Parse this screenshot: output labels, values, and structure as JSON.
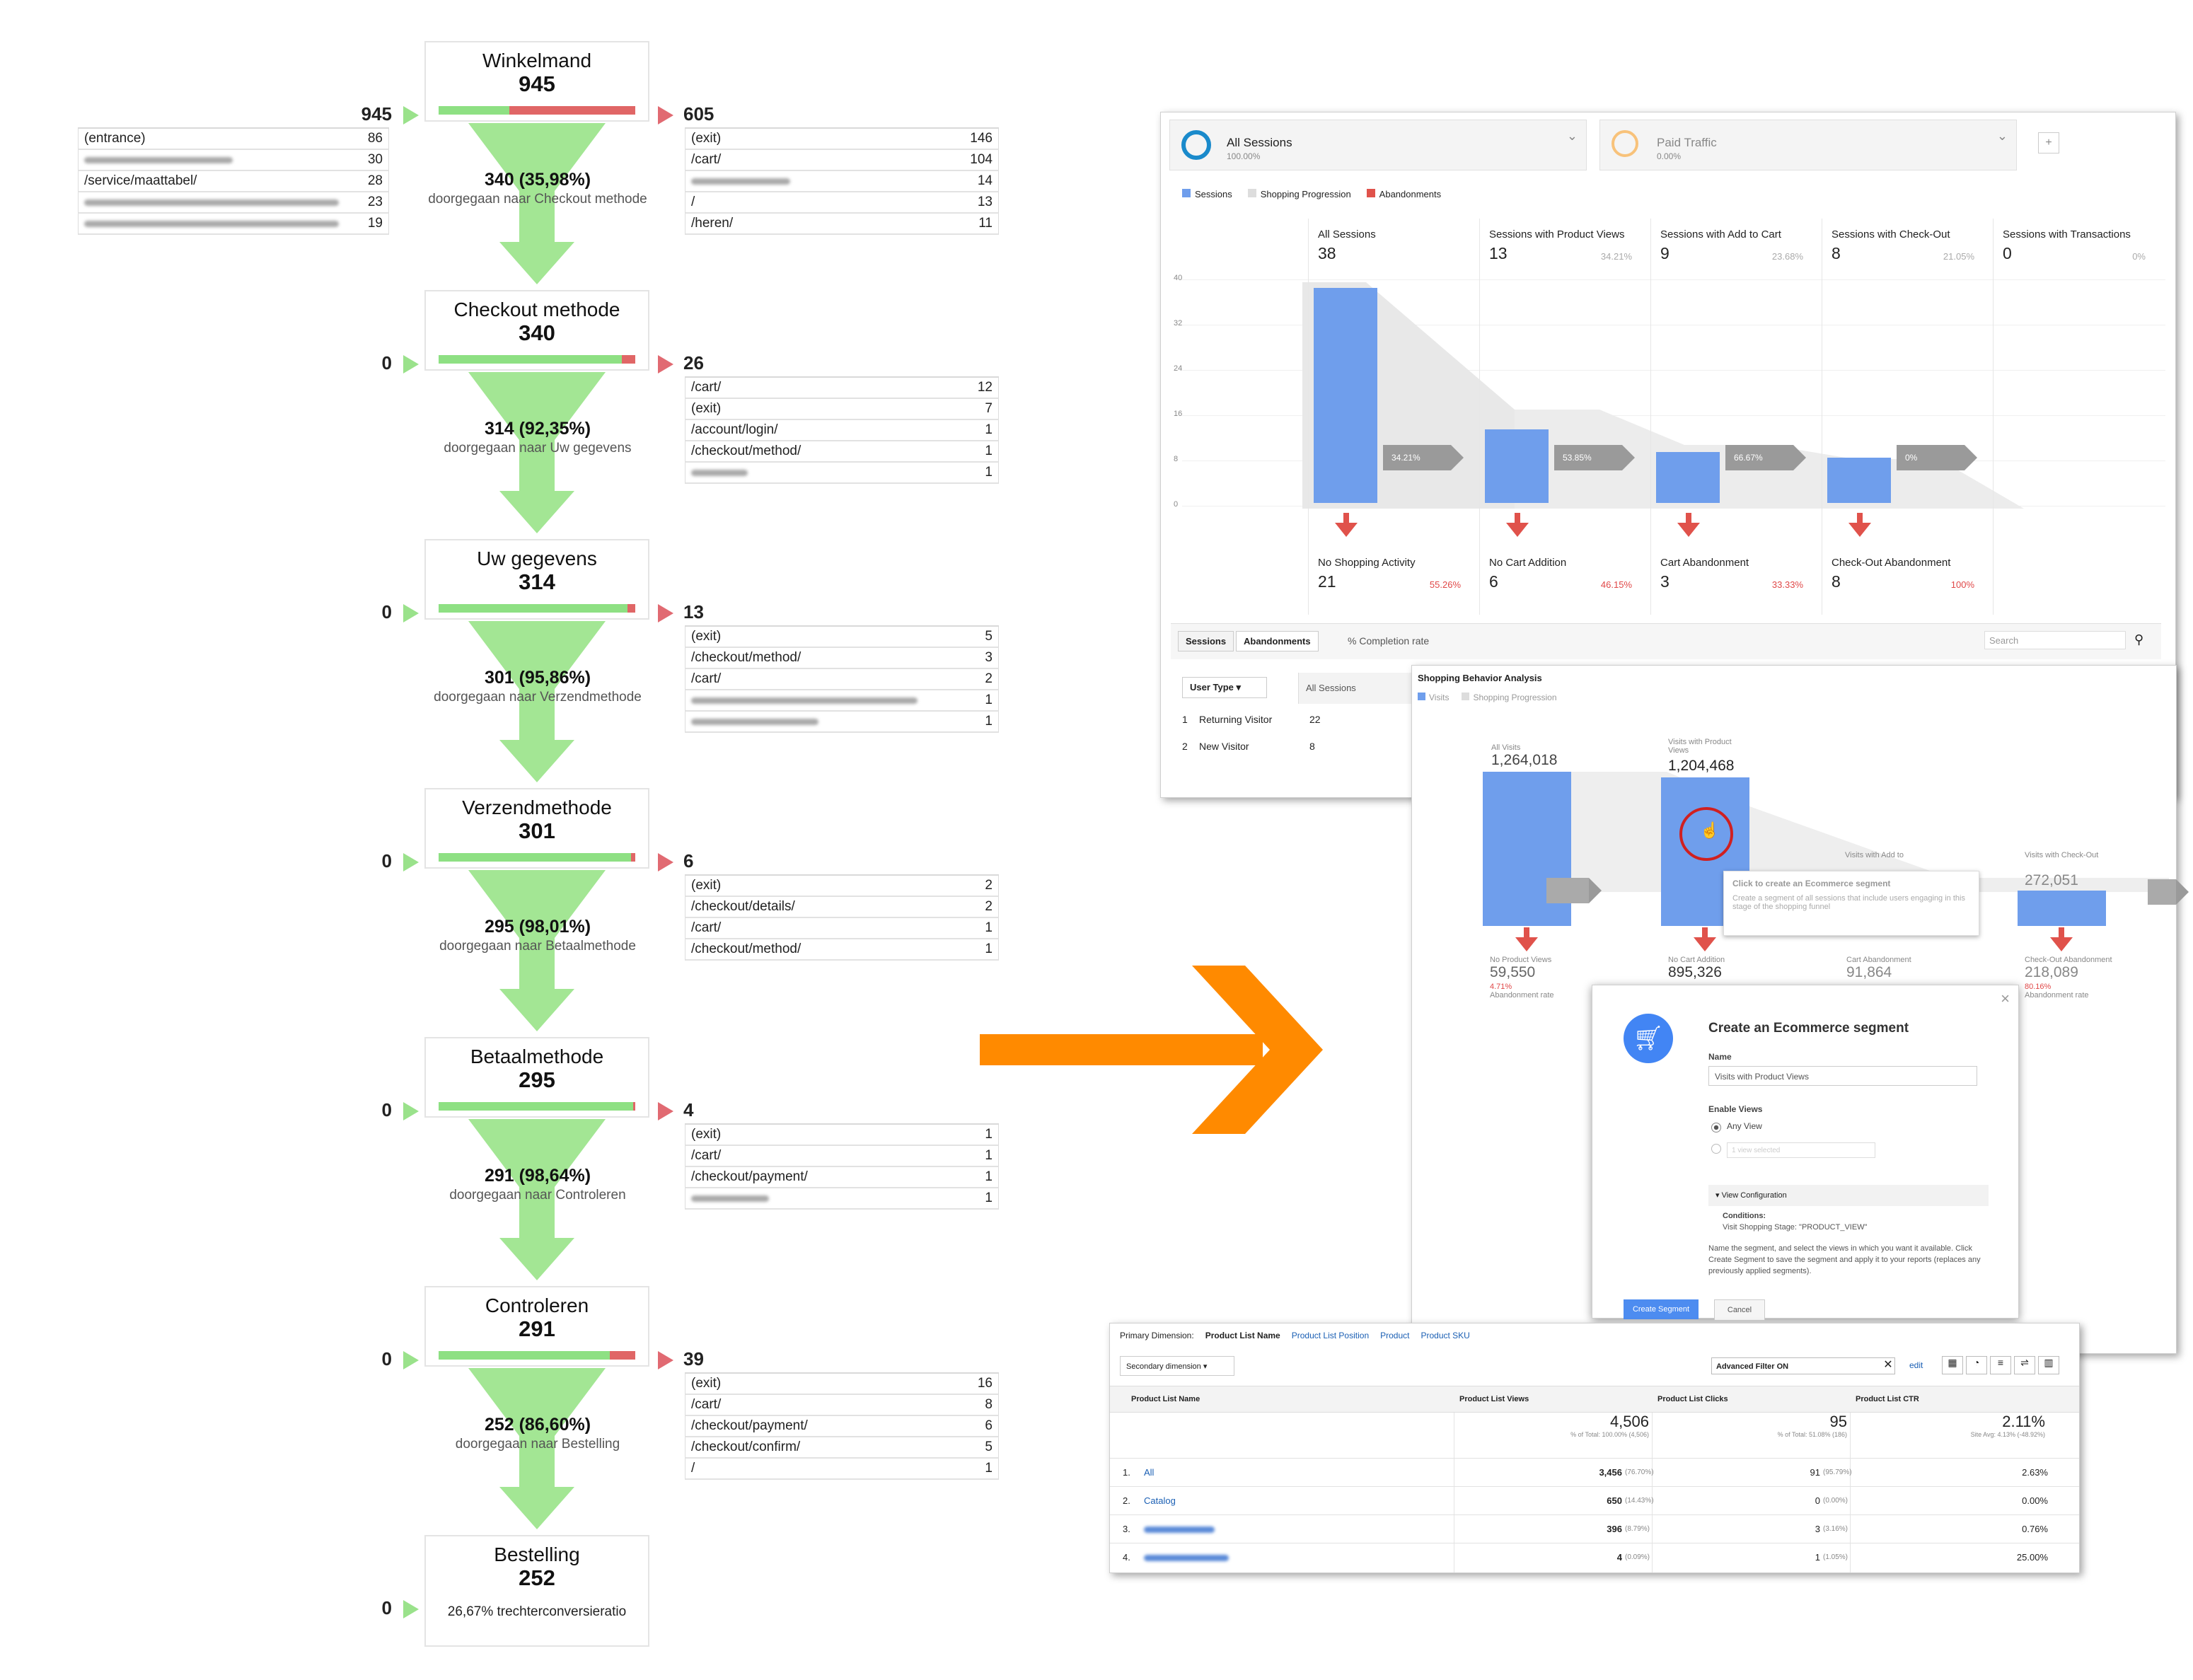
{
  "funnel": {
    "steps": [
      {
        "name": "Winkelmand",
        "count": "945",
        "in": "945",
        "out": "605",
        "green": 0.36,
        "in_rows": [
          {
            "label": "(entrance)",
            "value": "86"
          },
          {
            "label": "",
            "value": "30",
            "blur": 210
          },
          {
            "label": "/service/maattabel/",
            "value": "28"
          },
          {
            "label": "",
            "value": "23",
            "blur": 360
          },
          {
            "label": "",
            "value": "19",
            "blur": 360
          }
        ],
        "out_rows": [
          {
            "label": "(exit)",
            "value": "146"
          },
          {
            "label": "/cart/",
            "value": "104"
          },
          {
            "label": "",
            "value": "14",
            "blur": 140
          },
          {
            "label": "/",
            "value": "13"
          },
          {
            "label": "/heren/",
            "value": "11"
          }
        ],
        "conv_pct": "340 (35,98%)",
        "conv_text": "doorgegaan naar Checkout methode"
      },
      {
        "name": "Checkout methode",
        "count": "340",
        "in": "0",
        "out": "26",
        "green": 0.93,
        "out_rows": [
          {
            "label": "/cart/",
            "value": "12"
          },
          {
            "label": "(exit)",
            "value": "7"
          },
          {
            "label": "/account/login/",
            "value": "1"
          },
          {
            "label": "/checkout/method/",
            "value": "1"
          },
          {
            "label": "",
            "value": "1",
            "blur": 80
          }
        ],
        "conv_pct": "314 (92,35%)",
        "conv_text": "doorgegaan naar Uw gegevens"
      },
      {
        "name": "Uw gegevens",
        "count": "314",
        "in": "0",
        "out": "13",
        "green": 0.96,
        "out_rows": [
          {
            "label": "(exit)",
            "value": "5"
          },
          {
            "label": "/checkout/method/",
            "value": "3"
          },
          {
            "label": "/cart/",
            "value": "2"
          },
          {
            "label": "",
            "value": "1",
            "blur": 320
          },
          {
            "label": "",
            "value": "1",
            "blur": 180
          }
        ],
        "conv_pct": "301 (95,86%)",
        "conv_text": "doorgegaan naar Verzendmethode"
      },
      {
        "name": "Verzendmethode",
        "count": "301",
        "in": "0",
        "out": "6",
        "green": 0.98,
        "out_rows": [
          {
            "label": "(exit)",
            "value": "2"
          },
          {
            "label": "/checkout/details/",
            "value": "2"
          },
          {
            "label": "/cart/",
            "value": "1"
          },
          {
            "label": "/checkout/method/",
            "value": "1"
          }
        ],
        "conv_pct": "295 (98,01%)",
        "conv_text": "doorgegaan naar Betaalmethode"
      },
      {
        "name": "Betaalmethode",
        "count": "295",
        "in": "0",
        "out": "4",
        "green": 0.99,
        "out_rows": [
          {
            "label": "(exit)",
            "value": "1"
          },
          {
            "label": "/cart/",
            "value": "1"
          },
          {
            "label": "/checkout/payment/",
            "value": "1"
          },
          {
            "label": "",
            "value": "1",
            "blur": 110
          }
        ],
        "conv_pct": "291 (98,64%)",
        "conv_text": "doorgegaan naar Controleren"
      },
      {
        "name": "Controleren",
        "count": "291",
        "in": "0",
        "out": "39",
        "green": 0.87,
        "out_rows": [
          {
            "label": "(exit)",
            "value": "16"
          },
          {
            "label": "/cart/",
            "value": "8"
          },
          {
            "label": "/checkout/payment/",
            "value": "6"
          },
          {
            "label": "/checkout/confirm/",
            "value": "5"
          },
          {
            "label": "/",
            "value": "1"
          }
        ],
        "conv_pct": "252 (86,60%)",
        "conv_text": "doorgegaan naar Bestelling"
      },
      {
        "name": "Bestelling",
        "count": "252",
        "in": "0",
        "footer": "26,67% trechterconversieratio"
      }
    ]
  },
  "arrow_color": "#ff8a00",
  "sessions_panel": {
    "segment1": {
      "name": "All Sessions",
      "pct": "100.00%"
    },
    "segment2": {
      "name": "Paid Traffic",
      "pct": "0.00%"
    },
    "add_label": "+",
    "legend": [
      "Sessions",
      "Shopping Progression",
      "Abandonments"
    ],
    "yticks": [
      "40",
      "32",
      "24",
      "16",
      "8",
      "0"
    ],
    "columns": [
      {
        "label": "All Sessions",
        "value": "38",
        "pct": ""
      },
      {
        "label": "Sessions with Product Views",
        "value": "13",
        "pct": "34.21%"
      },
      {
        "label": "Sessions with Add to Cart",
        "value": "9",
        "pct": "23.68%"
      },
      {
        "label": "Sessions with Check-Out",
        "value": "8",
        "pct": "21.05%"
      },
      {
        "label": "Sessions with Transactions",
        "value": "0",
        "pct": "0%"
      }
    ],
    "progress": [
      "34.21%",
      "53.85%",
      "66.67%",
      "0%"
    ],
    "abandon": [
      {
        "label": "No Shopping Activity",
        "value": "21",
        "pct": "55.26%"
      },
      {
        "label": "No Cart Addition",
        "value": "6",
        "pct": "46.15%"
      },
      {
        "label": "Cart Abandonment",
        "value": "3",
        "pct": "33.33%"
      },
      {
        "label": "Check-Out Abandonment",
        "value": "8",
        "pct": "100%"
      }
    ],
    "tabs": [
      "Sessions",
      "Abandonments",
      "% Completion rate"
    ],
    "search_placeholder": "Search",
    "usertype_label": "User Type",
    "all_sessions_col": "All Sessions",
    "rows": [
      {
        "n": "1",
        "label": "Returning Visitor",
        "value": "22"
      },
      {
        "n": "2",
        "label": "New Visitor",
        "value": "8"
      }
    ]
  },
  "behavior_panel": {
    "title": "Shopping Behavior Analysis",
    "legend": [
      "Visits",
      "Shopping Progression"
    ],
    "col1": {
      "label": "All Visits",
      "value": "1,264,018"
    },
    "col2": {
      "label": "Visits with Product Views",
      "value": "1,204,468"
    },
    "col3": {
      "label": "Visits with Add to"
    },
    "col4": {
      "label": "Visits with Check-Out",
      "value": "272,051"
    },
    "ab1": {
      "label": "No Product Views",
      "value": "59,550",
      "pct": "4.71%",
      "sub": "Abandonment rate"
    },
    "ab2": {
      "label": "No Cart Addition",
      "value": "895,326"
    },
    "ab3": {
      "label": "Cart Abandonment",
      "value": "91,864"
    },
    "ab4": {
      "label": "Check-Out Abandonment",
      "value": "218,089",
      "pct": "80.16%",
      "sub": "Abandonment rate"
    },
    "tooltip_title": "Click to create an Ecommerce segment",
    "tooltip_text": "Create a segment of all sessions that include users engaging in this stage of the shopping funnel"
  },
  "dialog": {
    "title": "Create an Ecommerce segment",
    "name_label": "Name",
    "name_value": "Visits with Product Views",
    "enable_label": "Enable Views",
    "opt1": "Any View",
    "opt2": "1 view selected",
    "config_label": "View Configuration",
    "conditions_label": "Conditions:",
    "conditions_value": "Visit Shopping Stage: \"PRODUCT_VIEW\"",
    "help": "Name the segment, and select the views in which you want it available. Click Create Segment to save the segment and apply it to your reports (replaces any previously applied segments).",
    "create_btn": "Create Segment",
    "cancel_btn": "Cancel",
    "close": "×"
  },
  "product_panel": {
    "primary_label": "Primary Dimension:",
    "dims": [
      "Product List Name",
      "Product List Position",
      "Product",
      "Product SKU"
    ],
    "secondary": "Secondary dimension",
    "filter": "Advanced Filter ON",
    "edit": "edit",
    "headers": [
      "Product List Name",
      "Product List Views",
      "Product List Clicks",
      "Product List CTR"
    ],
    "totals": [
      {
        "v": "4,506",
        "s": "% of Total: 100.00% (4,506)"
      },
      {
        "v": "95",
        "s": "% of Total: 51.08% (186)"
      },
      {
        "v": "2.11%",
        "s": "Site Avg: 4.13% (-48.92%)"
      }
    ],
    "rows": [
      {
        "n": "1.",
        "name": "All",
        "views": "3,456",
        "vp": "(76.70%)",
        "clicks": "91",
        "cp": "(95.79%)",
        "ctr": "2.63%"
      },
      {
        "n": "2.",
        "name": "Catalog",
        "views": "650",
        "vp": "(14.43%)",
        "clicks": "0",
        "cp": "(0.00%)",
        "ctr": "0.00%"
      },
      {
        "n": "3.",
        "name": "",
        "views": "396",
        "vp": "(8.79%)",
        "clicks": "3",
        "cp": "(3.16%)",
        "ctr": "0.76%"
      },
      {
        "n": "4.",
        "name": "",
        "views": "4",
        "vp": "(0.09%)",
        "clicks": "1",
        "cp": "(1.05%)",
        "ctr": "25.00%"
      }
    ]
  }
}
